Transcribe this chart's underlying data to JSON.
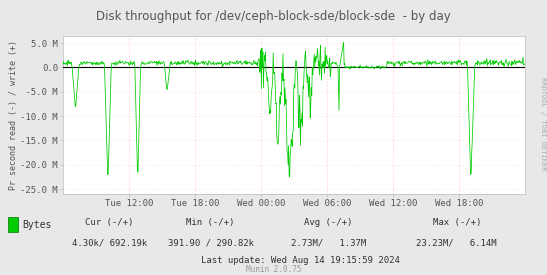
{
  "title": "Disk throughput for /dev/ceph-block-sde/block-sde  - by day",
  "ylabel": "Pr second read (-) / write (+)",
  "background_color": "#e8e8e8",
  "plot_bg_color": "#ffffff",
  "line_color": "#00cc00",
  "zero_line_color": "#000000",
  "ylim": [
    -26000000,
    6500000
  ],
  "yticks": [
    -25000000,
    -20000000,
    -15000000,
    -10000000,
    -5000000,
    0,
    5000000
  ],
  "ytick_labels": [
    "-25.0 M",
    "-20.0 M",
    "-15.0 M",
    "-10.0 M",
    " -5.0 M",
    "0.0",
    "5.0 M"
  ],
  "xtick_labels": [
    "Tue 12:00",
    "Tue 18:00",
    "Wed 00:00",
    "Wed 06:00",
    "Wed 12:00",
    "Wed 18:00"
  ],
  "watermark": "RRDTOOL / TOBI OETIKER",
  "legend_label": "Bytes",
  "legend_color": "#00cc00",
  "footer_cur": "Cur (-/+)",
  "footer_cur_val": "4.30k/ 692.19k",
  "footer_min": "Min (-/+)",
  "footer_min_val": "391.90 / 290.82k",
  "footer_avg": "Avg (-/+)",
  "footer_avg_val": "2.73M/   1.37M",
  "footer_max": "Max (-/+)",
  "footer_max_val": "23.23M/   6.14M",
  "footer_lastupdate": "Last update: Wed Aug 14 19:15:59 2024",
  "munin_version": "Munin 2.0.75",
  "title_color": "#555555",
  "tick_color": "#555555"
}
